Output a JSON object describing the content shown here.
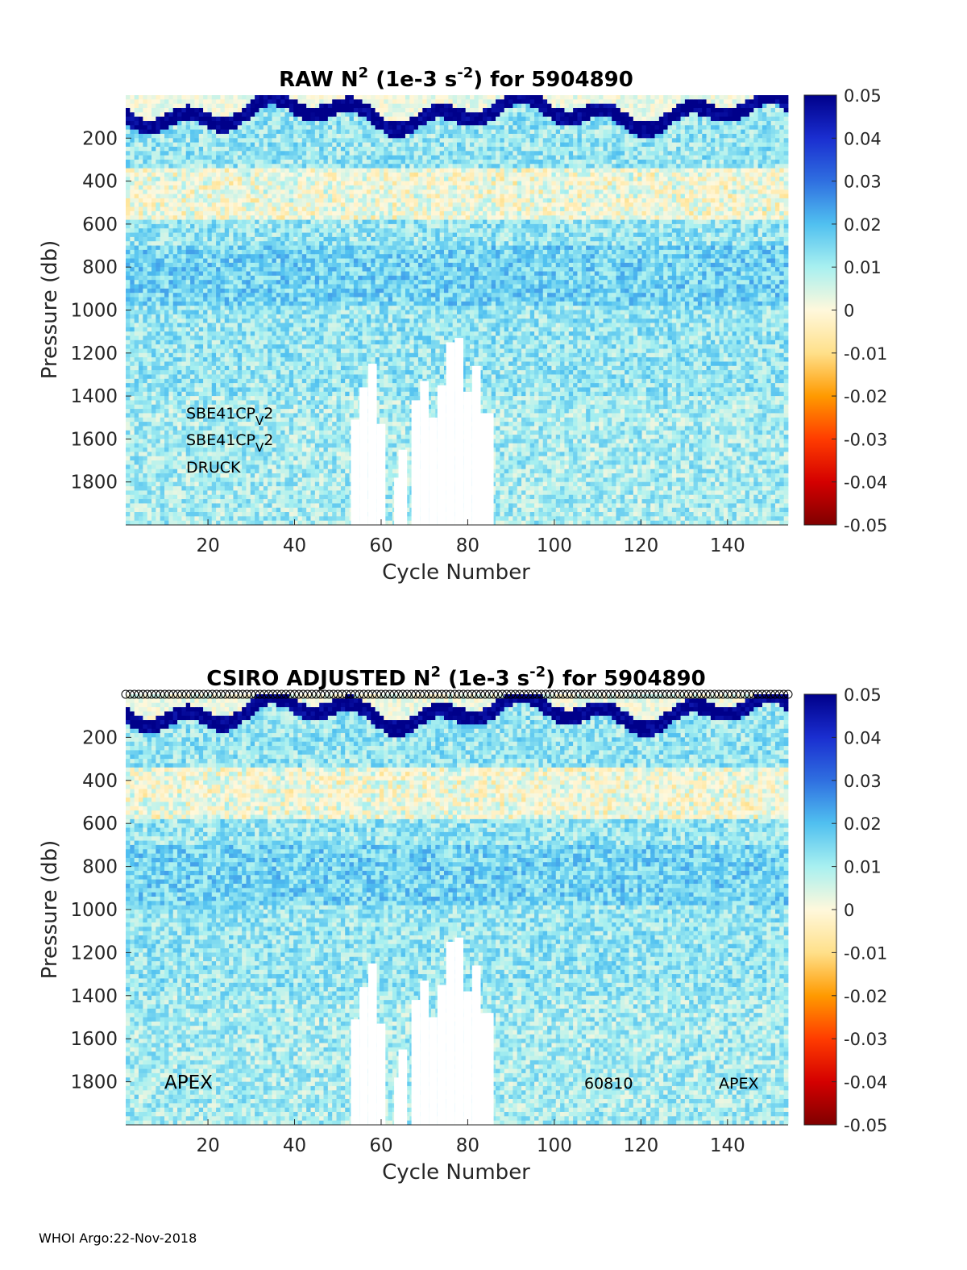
{
  "footer": "WHOI Argo:22-Nov-2018",
  "colorbar": {
    "ticks": [
      "0.05",
      "0.04",
      "0.03",
      "0.02",
      "0.01",
      "0",
      "-0.01",
      "-0.02",
      "-0.03",
      "-0.04",
      "-0.05"
    ],
    "range": [
      -0.05,
      0.05
    ],
    "colors": [
      "#800000",
      "#d40000",
      "#ff3c00",
      "#ff9a00",
      "#ffe08a",
      "#fff8dc",
      "#a8f0f0",
      "#50c0f0",
      "#2f6fe0",
      "#1a2ed0",
      "#00008a"
    ]
  },
  "chart_data": [
    {
      "type": "heatmap",
      "title": {
        "pre": "RAW N",
        "sup1": "2",
        "mid": " (1e-3 s",
        "sup2": "-2",
        "post": ") for 5904890"
      },
      "xlabel": "Cycle Number",
      "ylabel": "Pressure (db)",
      "xlim": [
        1,
        154
      ],
      "ylim": [
        2000,
        0
      ],
      "xticks": [
        "20",
        "40",
        "60",
        "80",
        "100",
        "120",
        "140"
      ],
      "yticks": [
        "200",
        "400",
        "600",
        "800",
        "1000",
        "1200",
        "1400",
        "1600",
        "1800"
      ],
      "annotations": {
        "sensor1": {
          "base": "SBE41CP",
          "sub": "V",
          "tail": "2"
        },
        "sensor2": {
          "base": "SBE41CP",
          "sub": "V",
          "tail": "2"
        },
        "sensor3": "DRUCK"
      },
      "qc_markers": false
    },
    {
      "type": "heatmap",
      "title": {
        "pre": "CSIRO  ADJUSTED N",
        "sup1": "2",
        "mid": " (1e-3 s",
        "sup2": "-2",
        "post": ") for 5904890"
      },
      "xlabel": "Cycle Number",
      "ylabel": "Pressure (db)",
      "xlim": [
        1,
        154
      ],
      "ylim": [
        2000,
        0
      ],
      "xticks": [
        "20",
        "40",
        "60",
        "80",
        "100",
        "120",
        "140"
      ],
      "yticks": [
        "200",
        "400",
        "600",
        "800",
        "1000",
        "1200",
        "1400",
        "1600",
        "1800"
      ],
      "annotations": {
        "left": "APEX",
        "serial": "60810",
        "right": "APEX"
      },
      "qc_markers": true
    }
  ]
}
